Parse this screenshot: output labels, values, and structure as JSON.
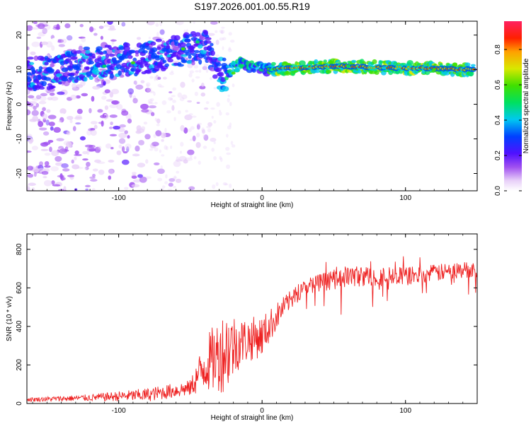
{
  "title": "S197.2026.001.00.55.R19",
  "chart_data": [
    {
      "type": "heatmap",
      "title": "S197.2026.001.00.55.R19",
      "xlabel": "Height of straight line (km)",
      "ylabel": "Frequency (Hz)",
      "xlim": [
        -164,
        150
      ],
      "ylim": [
        -25,
        24
      ],
      "xticks": [
        -100,
        0,
        100
      ],
      "yticks": [
        -20,
        -10,
        0,
        10,
        20
      ],
      "colorbar": {
        "label": "Normalized spectral amplitude",
        "range": [
          0,
          0.96
        ],
        "ticks": [
          0.0,
          0.2,
          0.4,
          0.6,
          0.8
        ],
        "tick_labels": [
          "0.0",
          "0.2",
          "0.4",
          "0.6",
          "0.8"
        ]
      },
      "ridge": [
        {
          "x": -150,
          "f": 9
        },
        {
          "x": -120,
          "f": 12
        },
        {
          "x": -90,
          "f": 13
        },
        {
          "x": -60,
          "f": 15
        },
        {
          "x": -40,
          "f": 17
        },
        {
          "x": -28,
          "f": 8
        },
        {
          "x": -15,
          "f": 12
        },
        {
          "x": 0,
          "f": 10
        },
        {
          "x": 50,
          "f": 11
        },
        {
          "x": 100,
          "f": 10.5
        },
        {
          "x": 148,
          "f": 10
        }
      ]
    },
    {
      "type": "line",
      "xlabel": "Height of straight line (km)",
      "ylabel": "SNR (10 * v/v)",
      "xlim": [
        -164,
        150
      ],
      "ylim": [
        0,
        880
      ],
      "xticks": [
        -100,
        0,
        100
      ],
      "yticks": [
        0,
        200,
        400,
        600,
        800
      ],
      "color": "#ee2222",
      "envelope": [
        {
          "x": -164,
          "base": 20,
          "amp": 15
        },
        {
          "x": -120,
          "base": 30,
          "amp": 25
        },
        {
          "x": -80,
          "base": 45,
          "amp": 50
        },
        {
          "x": -50,
          "base": 80,
          "amp": 60
        },
        {
          "x": -40,
          "base": 200,
          "amp": 200
        },
        {
          "x": -25,
          "base": 280,
          "amp": 320
        },
        {
          "x": -15,
          "base": 320,
          "amp": 180
        },
        {
          "x": 0,
          "base": 350,
          "amp": 150
        },
        {
          "x": 15,
          "base": 500,
          "amp": 80
        },
        {
          "x": 30,
          "base": 610,
          "amp": 60
        },
        {
          "x": 60,
          "base": 660,
          "amp": 80
        },
        {
          "x": 100,
          "base": 660,
          "amp": 70
        },
        {
          "x": 150,
          "base": 700,
          "amp": 60
        }
      ]
    }
  ]
}
